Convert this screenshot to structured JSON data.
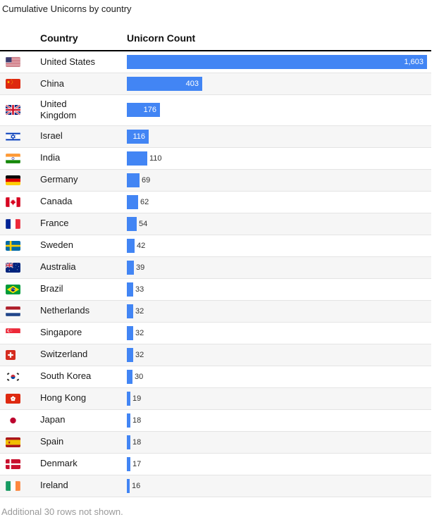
{
  "title": "Cumulative Unicorns by country",
  "columns": {
    "country": "Country",
    "count": "Unicorn Count"
  },
  "footer": "Additional 30 rows not shown.",
  "max_value": 1603,
  "colors": {
    "bar": "#4285f4",
    "row_alt_background": "#f6f6f6",
    "row_divider": "#e4e4e4",
    "header_rule": "#000000",
    "value_inside_text": "#ffffff",
    "value_outside_text": "#333333",
    "footer_text": "#9a9a9a"
  },
  "rows": [
    {
      "country": "United States",
      "flag": "us",
      "value": 1603,
      "display": "1,603",
      "label_inside": true
    },
    {
      "country": "China",
      "flag": "cn",
      "value": 403,
      "display": "403",
      "label_inside": true
    },
    {
      "country": "United Kingdom",
      "flag": "gb",
      "value": 176,
      "display": "176",
      "label_inside": true
    },
    {
      "country": "Israel",
      "flag": "il",
      "value": 116,
      "display": "116",
      "label_inside": true
    },
    {
      "country": "India",
      "flag": "in",
      "value": 110,
      "display": "110",
      "label_inside": false
    },
    {
      "country": "Germany",
      "flag": "de",
      "value": 69,
      "display": "69",
      "label_inside": false
    },
    {
      "country": "Canada",
      "flag": "ca",
      "value": 62,
      "display": "62",
      "label_inside": false
    },
    {
      "country": "France",
      "flag": "fr",
      "value": 54,
      "display": "54",
      "label_inside": false
    },
    {
      "country": "Sweden",
      "flag": "se",
      "value": 42,
      "display": "42",
      "label_inside": false
    },
    {
      "country": "Australia",
      "flag": "au",
      "value": 39,
      "display": "39",
      "label_inside": false
    },
    {
      "country": "Brazil",
      "flag": "br",
      "value": 33,
      "display": "33",
      "label_inside": false
    },
    {
      "country": "Netherlands",
      "flag": "nl",
      "value": 32,
      "display": "32",
      "label_inside": false
    },
    {
      "country": "Singapore",
      "flag": "sg",
      "value": 32,
      "display": "32",
      "label_inside": false
    },
    {
      "country": "Switzerland",
      "flag": "ch",
      "value": 32,
      "display": "32",
      "label_inside": false
    },
    {
      "country": "South Korea",
      "flag": "kr",
      "value": 30,
      "display": "30",
      "label_inside": false
    },
    {
      "country": "Hong Kong",
      "flag": "hk",
      "value": 19,
      "display": "19",
      "label_inside": false
    },
    {
      "country": "Japan",
      "flag": "jp",
      "value": 18,
      "display": "18",
      "label_inside": false
    },
    {
      "country": "Spain",
      "flag": "es",
      "value": 18,
      "display": "18",
      "label_inside": false
    },
    {
      "country": "Denmark",
      "flag": "dk",
      "value": 17,
      "display": "17",
      "label_inside": false
    },
    {
      "country": "Ireland",
      "flag": "ie",
      "value": 16,
      "display": "16",
      "label_inside": false
    }
  ],
  "chart_data": {
    "type": "bar",
    "orientation": "horizontal",
    "title": "Cumulative Unicorns by country",
    "categories": [
      "United States",
      "China",
      "United Kingdom",
      "Israel",
      "India",
      "Germany",
      "Canada",
      "France",
      "Sweden",
      "Australia",
      "Brazil",
      "Netherlands",
      "Singapore",
      "Switzerland",
      "South Korea",
      "Hong Kong",
      "Japan",
      "Spain",
      "Denmark",
      "Ireland"
    ],
    "values": [
      1603,
      403,
      176,
      116,
      110,
      69,
      62,
      54,
      42,
      39,
      33,
      32,
      32,
      32,
      30,
      19,
      18,
      18,
      17,
      16
    ],
    "xlabel": "Unicorn Count",
    "ylabel": "Country",
    "xlim": [
      0,
      1603
    ],
    "grid": false,
    "legend": false,
    "bar_color": "#4285f4",
    "note": "Additional 30 rows not shown."
  }
}
